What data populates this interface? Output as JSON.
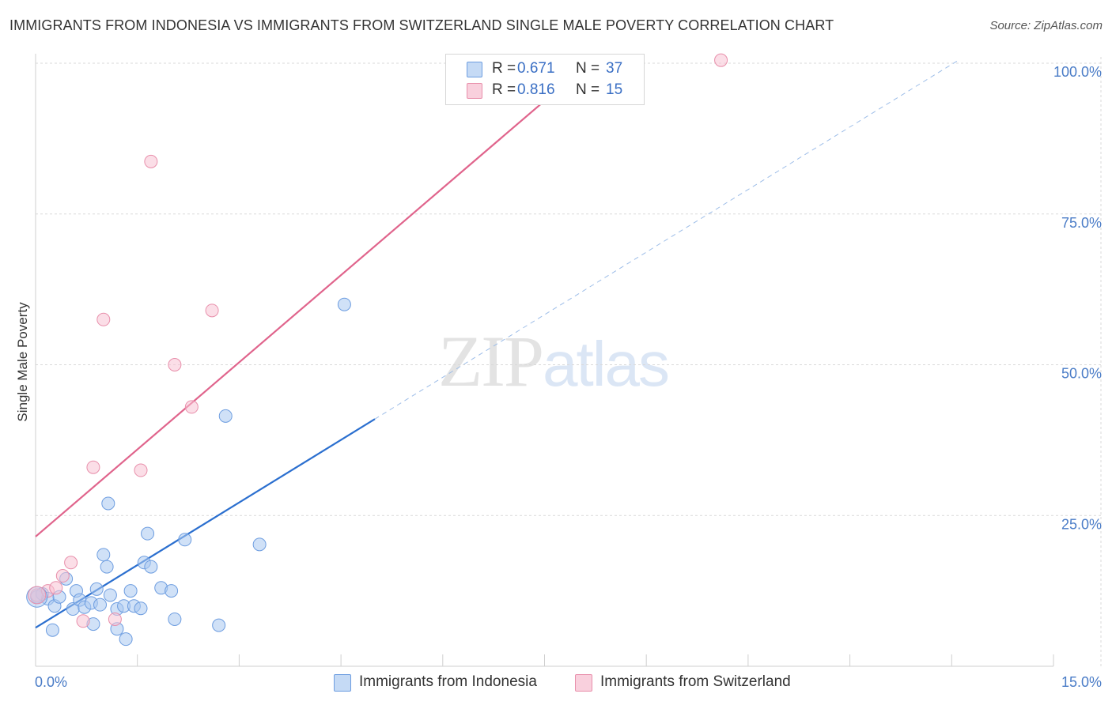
{
  "header": {
    "title": "IMMIGRANTS FROM INDONESIA VS IMMIGRANTS FROM SWITZERLAND SINGLE MALE POVERTY CORRELATION CHART",
    "source": "Source: ZipAtlas.com"
  },
  "watermark": {
    "zip": "ZIP",
    "atlas": "atlas"
  },
  "legend": {
    "r_label": "R =",
    "n_label": "N =",
    "series": [
      {
        "name": "Immigrants from Indonesia",
        "r": "0.671",
        "n": "37"
      },
      {
        "name": "Immigrants from Switzerland",
        "r": "0.816",
        "n": "15"
      }
    ]
  },
  "colors": {
    "indonesia_fill": "#aac8f0",
    "indonesia_stroke": "#6d9de0",
    "indonesia_line": "#2b6fcf",
    "switzerland_fill": "#f7c3d3",
    "switzerland_stroke": "#e88fab",
    "switzerland_line": "#e0648c",
    "tick_text": "#4a7cc7",
    "grid": "#d9d9d9"
  },
  "chart_data": {
    "type": "scatter",
    "title": "IMMIGRANTS FROM INDONESIA VS IMMIGRANTS FROM SWITZERLAND SINGLE MALE POVERTY CORRELATION CHART",
    "xlabel": "",
    "ylabel": "Single Male Poverty",
    "xlim": [
      0,
      15
    ],
    "ylim": [
      0,
      105
    ],
    "x_ticks": [
      0,
      1.5,
      3,
      4.5,
      6,
      7.5,
      9,
      10.5,
      12,
      13.5,
      15
    ],
    "x_tick_labels": [
      {
        "value": 0,
        "label": "0.0%"
      },
      {
        "value": 15,
        "label": "15.0%"
      }
    ],
    "y_ticks": [
      {
        "value": 25,
        "label": "25.0%"
      },
      {
        "value": 50,
        "label": "50.0%"
      },
      {
        "value": 75,
        "label": "75.0%"
      },
      {
        "value": 100,
        "label": "100.0%"
      }
    ],
    "grid": true,
    "series": [
      {
        "name": "Immigrants from Indonesia",
        "r": 0.671,
        "n": 37,
        "points": [
          [
            0.02,
            11.5
          ],
          [
            0.1,
            12.0
          ],
          [
            0.18,
            11.2
          ],
          [
            0.28,
            10.0
          ],
          [
            0.35,
            11.5
          ],
          [
            0.45,
            14.5
          ],
          [
            0.55,
            9.5
          ],
          [
            0.6,
            12.5
          ],
          [
            0.65,
            11.0
          ],
          [
            0.72,
            9.8
          ],
          [
            0.82,
            10.5
          ],
          [
            0.9,
            12.8
          ],
          [
            0.85,
            7.0
          ],
          [
            1.0,
            18.5
          ],
          [
            1.05,
            16.5
          ],
          [
            1.1,
            11.8
          ],
          [
            1.2,
            9.5
          ],
          [
            1.3,
            10.0
          ],
          [
            1.4,
            12.5
          ],
          [
            1.45,
            10.0
          ],
          [
            1.33,
            4.5
          ],
          [
            1.07,
            27.0
          ],
          [
            1.55,
            9.6
          ],
          [
            1.6,
            17.2
          ],
          [
            1.65,
            22.0
          ],
          [
            1.7,
            16.5
          ],
          [
            1.85,
            13.0
          ],
          [
            2.0,
            12.5
          ],
          [
            2.05,
            7.8
          ],
          [
            2.2,
            21.0
          ],
          [
            1.2,
            6.2
          ],
          [
            2.7,
            6.8
          ],
          [
            2.8,
            41.5
          ],
          [
            3.3,
            20.2
          ],
          [
            4.55,
            60.0
          ],
          [
            0.25,
            6.0
          ],
          [
            0.95,
            10.2
          ]
        ],
        "trend": {
          "solid": [
            [
              0,
              6.4
            ],
            [
              5.0,
              41.0
            ]
          ],
          "dashed": [
            [
              5.0,
              41.0
            ],
            [
              13.6,
              100.5
            ]
          ]
        }
      },
      {
        "name": "Immigrants from Switzerland",
        "r": 0.816,
        "n": 15,
        "points": [
          [
            0.02,
            11.8
          ],
          [
            0.18,
            12.5
          ],
          [
            0.4,
            15.0
          ],
          [
            0.52,
            17.2
          ],
          [
            0.7,
            7.5
          ],
          [
            0.85,
            33.0
          ],
          [
            1.0,
            57.5
          ],
          [
            1.17,
            7.8
          ],
          [
            1.55,
            32.5
          ],
          [
            1.7,
            83.7
          ],
          [
            2.05,
            50.0
          ],
          [
            2.3,
            43.0
          ],
          [
            2.6,
            59.0
          ],
          [
            10.1,
            100.5
          ],
          [
            0.3,
            13.0
          ]
        ],
        "trend": {
          "solid": [
            [
              0,
              21.5
            ],
            [
              8.2,
              100.5
            ]
          ]
        }
      }
    ]
  }
}
